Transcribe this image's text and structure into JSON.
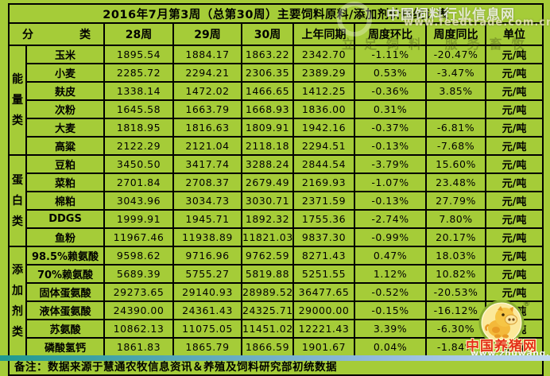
{
  "chart_data": {
    "type": "table",
    "title": "2016年7月第3周（总第30周）主要饲料原料/添加剂价格统计表",
    "header": {
      "cat_left": "分",
      "cat_right": "类",
      "w28": "28周",
      "w29": "29周",
      "w30": "30周",
      "prev": "上年同期",
      "wow": "周度环比",
      "yoy": "周度同比",
      "unit": "单位"
    },
    "groups": [
      {
        "label": "能量类",
        "rows": [
          {
            "name": "玉米",
            "w28": "1895.54",
            "w29": "1884.17",
            "w30": "1863.22",
            "prev": "2342.70",
            "wow": "-1.11%",
            "yoy": "-20.47%",
            "unit": "元/吨"
          },
          {
            "name": "小麦",
            "w28": "2285.72",
            "w29": "2294.21",
            "w30": "2306.35",
            "prev": "2389.29",
            "wow": "0.53%",
            "yoy": "-3.47%",
            "unit": "元/吨"
          },
          {
            "name": "麸皮",
            "w28": "1338.14",
            "w29": "1472.02",
            "w30": "1466.65",
            "prev": "1412.25",
            "wow": "-0.36%",
            "yoy": "3.85%",
            "unit": "元/吨"
          },
          {
            "name": "次粉",
            "w28": "1645.58",
            "w29": "1663.79",
            "w30": "1668.93",
            "prev": "1836.00",
            "wow": "0.31%",
            "yoy": "",
            "unit": "元/吨"
          },
          {
            "name": "大麦",
            "w28": "1818.95",
            "w29": "1816.63",
            "w30": "1809.91",
            "prev": "1942.16",
            "wow": "-0.37%",
            "yoy": "-6.81%",
            "unit": "元/吨"
          },
          {
            "name": "高粱",
            "w28": "2122.29",
            "w29": "2121.04",
            "w30": "2118.18",
            "prev": "2294.51",
            "wow": "-0.13%",
            "yoy": "-7.68%",
            "unit": "元/吨"
          }
        ]
      },
      {
        "label": "蛋白类",
        "rows": [
          {
            "name": "豆粕",
            "w28": "3450.50",
            "w29": "3417.74",
            "w30": "3288.24",
            "prev": "2844.54",
            "wow": "-3.79%",
            "yoy": "15.60%",
            "unit": "元/吨"
          },
          {
            "name": "菜粕",
            "w28": "2701.84",
            "w29": "2708.37",
            "w30": "2679.49",
            "prev": "2169.93",
            "wow": "-1.07%",
            "yoy": "23.48%",
            "unit": "元/吨"
          },
          {
            "name": "棉粕",
            "w28": "3043.96",
            "w29": "3034.73",
            "w30": "3030.71",
            "prev": "2371.59",
            "wow": "-0.13%",
            "yoy": "27.79%",
            "unit": "元/吨"
          },
          {
            "name": "DDGS",
            "w28": "1999.91",
            "w29": "1945.71",
            "w30": "1892.32",
            "prev": "1755.36",
            "wow": "-2.74%",
            "yoy": "7.80%",
            "unit": "元/吨"
          },
          {
            "name": "鱼粉",
            "w28": "11967.46",
            "w29": "11938.89",
            "w30": "11821.03",
            "prev": "9837.30",
            "wow": "-0.99%",
            "yoy": "20.17%",
            "unit": "元/吨"
          }
        ]
      },
      {
        "label": "添加剂类",
        "rows": [
          {
            "name": "98.5%赖氨酸",
            "w28": "9598.62",
            "w29": "9716.96",
            "w30": "9762.59",
            "prev": "8271.43",
            "wow": "0.47%",
            "yoy": "18.03%",
            "unit": "元/吨"
          },
          {
            "name": "70%赖氨酸",
            "w28": "5689.39",
            "w29": "5755.27",
            "w30": "5819.88",
            "prev": "5251.55",
            "wow": "1.12%",
            "yoy": "10.82%",
            "unit": "元/吨"
          },
          {
            "name": "固体蛋氨酸",
            "w28": "29273.65",
            "w29": "29140.93",
            "w30": "28989.52",
            "prev": "36477.65",
            "wow": "-0.52%",
            "yoy": "-20.53%",
            "unit": "元/吨"
          },
          {
            "name": "液体蛋氨酸",
            "w28": "24390.00",
            "w29": "24361.43",
            "w30": "24325.71",
            "prev": "29000.00",
            "wow": "-0.15%",
            "yoy": "-16.12%",
            "unit": "元/吨"
          },
          {
            "name": "苏氨酸",
            "w28": "10862.13",
            "w29": "11075.05",
            "w30": "11451.02",
            "prev": "12221.43",
            "wow": "3.39%",
            "yoy": "-6.30%",
            "unit": "元/吨"
          },
          {
            "name": "磷酸氢钙",
            "w28": "1861.83",
            "w29": "1865.79",
            "w30": "1866.59",
            "prev": "1901.67",
            "wow": "0.04%",
            "yoy": "-1.84%",
            "unit": "元/吨"
          }
        ]
      }
    ],
    "footer": "备注：数据来源于慧通农牧信息资讯＆养殖及饲料研究部初统数据"
  },
  "watermarks": {
    "feedtrade_name": "中国饲料行业信息网",
    "feedtrade_url": "www.feedtrade.com.cn",
    "slogan": "立足饲料 服务畜牧",
    "zhuwang_name": "中国养猪网",
    "zhuwang_url": "www.zhuwang.cc",
    "registered": "®"
  },
  "colors": {
    "table_green": "#a5cc38",
    "border": "#000000",
    "strip_left": "#1f9a90",
    "strip_right": "#c2d9f0",
    "zhuwang_red": "#e43019"
  }
}
